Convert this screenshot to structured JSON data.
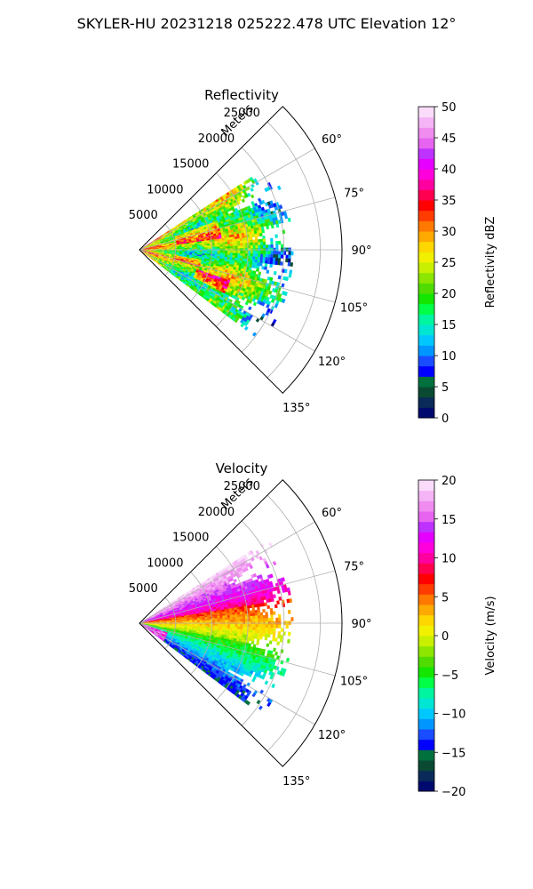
{
  "figure": {
    "suptitle": "SKYLER-HU  20231218  025222.478 UTC Elevation 12°"
  },
  "chart_data": [
    {
      "type": "heatmap",
      "projection": "polar-sector",
      "title": "Reflectivity",
      "radial_label": "Meters",
      "radial_ticks": [
        5000,
        10000,
        15000,
        20000,
        25000
      ],
      "radial_tick_labels": [
        "5000",
        "10000",
        "15000",
        "20000",
        "25000"
      ],
      "rlim": [
        0,
        28000
      ],
      "theta_ticks": [
        60,
        75,
        90,
        105,
        120,
        135
      ],
      "theta_tick_labels": [
        "60°",
        "75°",
        "90°",
        "105°",
        "120°",
        "135°"
      ],
      "theta_range_deg": [
        45,
        135
      ],
      "data_azimuth_range_deg": [
        57,
        127
      ],
      "data_max_range_m": 21000,
      "grid": true,
      "colorbar": {
        "label": "Reflectivity dBZ",
        "vmin": 0,
        "vmax": 50,
        "ticks": [
          0,
          5,
          10,
          15,
          20,
          25,
          30,
          35,
          40,
          45,
          50
        ],
        "tick_labels": [
          "0",
          "5",
          "10",
          "15",
          "20",
          "25",
          "30",
          "35",
          "40",
          "45",
          "50"
        ],
        "colors": [
          "#000a6e",
          "#0a2a5a",
          "#0a4a32",
          "#00703c",
          "#0000ff",
          "#1a4dff",
          "#0096ff",
          "#00c8ff",
          "#00e6d2",
          "#00f5a0",
          "#00ff46",
          "#14e600",
          "#50dc00",
          "#8ce600",
          "#c8f000",
          "#f0f000",
          "#ffd700",
          "#ffaa00",
          "#ff7800",
          "#ff3c00",
          "#ff0000",
          "#ff0050",
          "#ff00a0",
          "#ff00dc",
          "#e600ff",
          "#be32ff",
          "#e664f0",
          "#f08cf0",
          "#f5b4f5",
          "#fadcfa"
        ]
      }
    },
    {
      "type": "heatmap",
      "projection": "polar-sector",
      "title": "Velocity",
      "radial_label": "Meters",
      "radial_ticks": [
        5000,
        10000,
        15000,
        20000,
        25000
      ],
      "radial_tick_labels": [
        "5000",
        "10000",
        "15000",
        "20000",
        "25000"
      ],
      "rlim": [
        0,
        28000
      ],
      "theta_ticks": [
        60,
        75,
        90,
        105,
        120,
        135
      ],
      "theta_tick_labels": [
        "60°",
        "75°",
        "90°",
        "105°",
        "120°",
        "135°"
      ],
      "theta_range_deg": [
        45,
        135
      ],
      "data_azimuth_range_deg": [
        57,
        127
      ],
      "data_max_range_m": 21000,
      "grid": true,
      "colorbar": {
        "label": "Velocity (m/s)",
        "vmin": -20,
        "vmax": 20,
        "ticks": [
          -20,
          -15,
          -10,
          -5,
          0,
          5,
          10,
          15,
          20
        ],
        "tick_labels": [
          "−20",
          "−15",
          "−10",
          "−5",
          "0",
          "5",
          "10",
          "15",
          "20"
        ],
        "colors": [
          "#000a6e",
          "#0a2a5a",
          "#0a4a32",
          "#00703c",
          "#0000ff",
          "#1a4dff",
          "#0096ff",
          "#00c8ff",
          "#00e6d2",
          "#00f5a0",
          "#00ff46",
          "#14e600",
          "#50dc00",
          "#8ce600",
          "#c8f000",
          "#f0f000",
          "#ffd700",
          "#ffaa00",
          "#ff7800",
          "#ff3c00",
          "#ff0000",
          "#ff0050",
          "#ff00a0",
          "#ff00dc",
          "#e600ff",
          "#be32ff",
          "#e664f0",
          "#f08cf0",
          "#f5b4f5",
          "#fadcfa"
        ]
      }
    }
  ]
}
